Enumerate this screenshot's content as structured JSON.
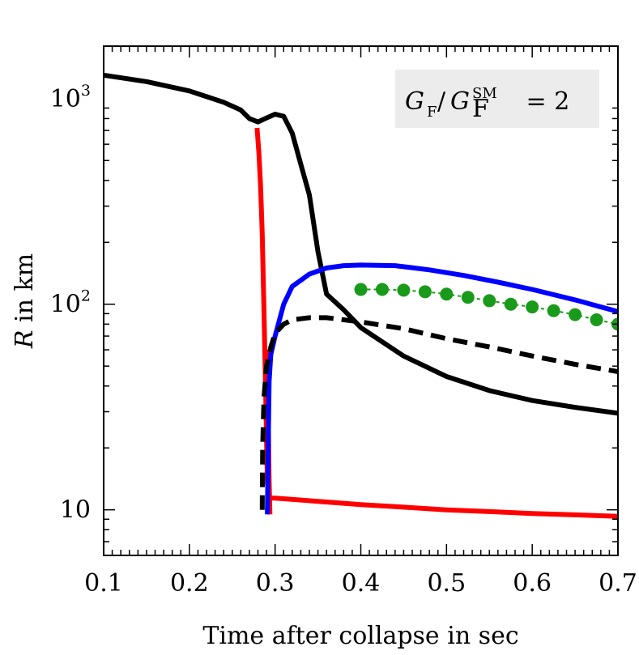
{
  "chart_data": {
    "type": "line",
    "xlabel": "Time after collapse in sec",
    "ylabel": "R in km",
    "ylabel_parts": {
      "var": "R",
      "rest": " in km"
    },
    "xlim": [
      0.1,
      0.7
    ],
    "ylim": [
      6,
      1800
    ],
    "yscale": "log",
    "grid": false,
    "x_ticks": [
      0.1,
      0.2,
      0.3,
      0.4,
      0.5,
      0.6,
      0.7
    ],
    "x_tick_labels": [
      "0.1",
      "0.2",
      "0.3",
      "0.4",
      "0.5",
      "0.6",
      "0.7"
    ],
    "y_ticks": [
      {
        "value": 10,
        "base": "10",
        "exp": ""
      },
      {
        "value": 100,
        "base": "10",
        "exp": "2"
      },
      {
        "value": 1000,
        "base": "10",
        "exp": "3"
      }
    ],
    "legend": {
      "placement": "top-right",
      "G": "G",
      "sub": "F",
      "slash": "/",
      "sup": "SM",
      "equals": "= 2",
      "background": "#ececec"
    },
    "series": [
      {
        "color": "#000000",
        "style": "solid",
        "points": [
          [
            0.1,
            1300
          ],
          [
            0.15,
            1210
          ],
          [
            0.2,
            1090
          ],
          [
            0.24,
            960
          ],
          [
            0.26,
            880
          ],
          [
            0.27,
            800
          ],
          [
            0.28,
            770
          ],
          [
            0.29,
            805
          ],
          [
            0.3,
            840
          ],
          [
            0.31,
            820
          ],
          [
            0.32,
            680
          ],
          [
            0.33,
            480
          ],
          [
            0.34,
            340
          ],
          [
            0.35,
            180
          ],
          [
            0.36,
            112
          ],
          [
            0.38,
            94
          ],
          [
            0.4,
            77
          ],
          [
            0.45,
            56
          ],
          [
            0.5,
            44.5
          ],
          [
            0.55,
            38
          ],
          [
            0.6,
            34
          ],
          [
            0.65,
            31.5
          ],
          [
            0.7,
            29.5
          ]
        ]
      },
      {
        "color": "#ff0000",
        "style": "solid",
        "points": [
          [
            0.279,
            720
          ],
          [
            0.281,
            550
          ],
          [
            0.283,
            380
          ],
          [
            0.285,
            220
          ],
          [
            0.287,
            95
          ],
          [
            0.289,
            38
          ],
          [
            0.291,
            13.5
          ],
          [
            0.293,
            11.4
          ],
          [
            0.3,
            11.4
          ],
          [
            0.35,
            11.0
          ],
          [
            0.4,
            10.6
          ],
          [
            0.45,
            10.3
          ],
          [
            0.5,
            10.0
          ],
          [
            0.55,
            9.8
          ],
          [
            0.6,
            9.6
          ],
          [
            0.65,
            9.45
          ],
          [
            0.7,
            9.3
          ]
        ]
      },
      {
        "color": "#ff0000",
        "style": "solid",
        "points": [
          [
            0.294,
            9.5
          ],
          [
            0.293,
            14
          ],
          [
            0.292,
            30
          ],
          [
            0.291,
            60
          ]
        ]
      },
      {
        "color": "#0000ff",
        "style": "solid",
        "points": [
          [
            0.291,
            9.5
          ],
          [
            0.292,
            20
          ],
          [
            0.293,
            42
          ],
          [
            0.295,
            57
          ],
          [
            0.3,
            70
          ],
          [
            0.31,
            100
          ],
          [
            0.32,
            122
          ],
          [
            0.34,
            140
          ],
          [
            0.36,
            150
          ],
          [
            0.38,
            154
          ],
          [
            0.4,
            155
          ],
          [
            0.44,
            154
          ],
          [
            0.48,
            147
          ],
          [
            0.52,
            138
          ],
          [
            0.56,
            128
          ],
          [
            0.6,
            118
          ],
          [
            0.65,
            105
          ],
          [
            0.7,
            92
          ]
        ]
      },
      {
        "color": "#000000",
        "style": "dashed",
        "points": [
          [
            0.285,
            10
          ],
          [
            0.2855,
            20
          ],
          [
            0.287,
            35
          ],
          [
            0.29,
            50
          ],
          [
            0.295,
            62
          ],
          [
            0.3,
            72
          ],
          [
            0.31,
            80
          ],
          [
            0.32,
            84
          ],
          [
            0.34,
            86
          ],
          [
            0.36,
            86
          ],
          [
            0.4,
            82
          ],
          [
            0.45,
            76
          ],
          [
            0.5,
            68
          ],
          [
            0.55,
            62
          ],
          [
            0.6,
            56
          ],
          [
            0.65,
            51
          ],
          [
            0.7,
            47
          ]
        ]
      },
      {
        "color": "#1a9a1a",
        "style": "dotted-markers",
        "points": [
          [
            0.4,
            118
          ],
          [
            0.425,
            118
          ],
          [
            0.45,
            117
          ],
          [
            0.475,
            115
          ],
          [
            0.5,
            112
          ],
          [
            0.525,
            108
          ],
          [
            0.55,
            104
          ],
          [
            0.575,
            100
          ],
          [
            0.6,
            97
          ],
          [
            0.625,
            93
          ],
          [
            0.65,
            89
          ],
          [
            0.675,
            84
          ],
          [
            0.7,
            80
          ]
        ]
      }
    ]
  }
}
